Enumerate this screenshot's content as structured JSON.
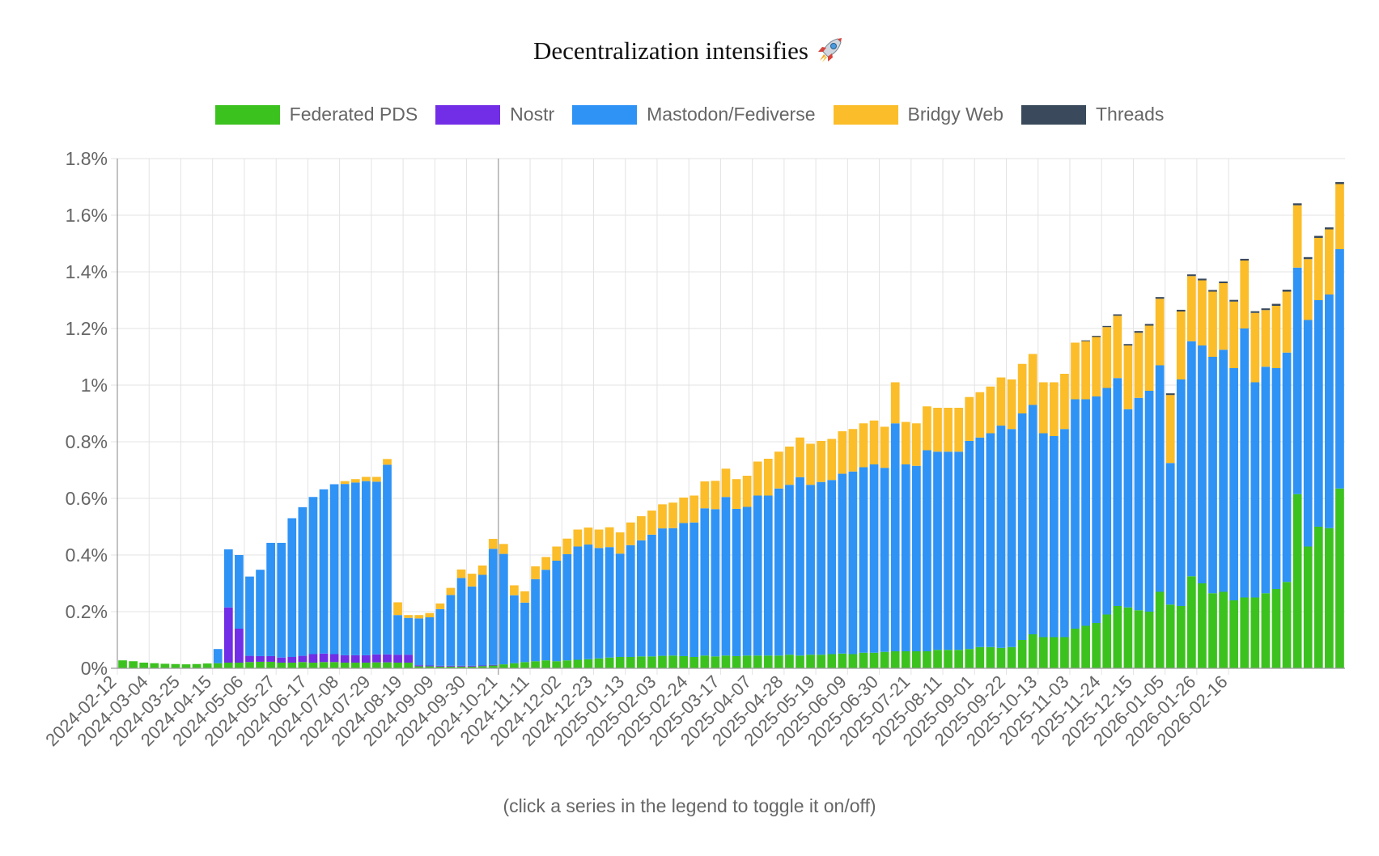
{
  "chart_data": {
    "type": "bar",
    "stacked": true,
    "title": "Decentralization intensifies",
    "title_icon": "rocket-icon",
    "footnote": "(click a series in the legend to toggle it on/off)",
    "legend_position": "top-center",
    "grid": true,
    "ylim": [
      0,
      1.8
    ],
    "y_ticks": [
      {
        "value": 0,
        "label": "0%"
      },
      {
        "value": 0.2,
        "label": "0.2%"
      },
      {
        "value": 0.4,
        "label": "0.4%"
      },
      {
        "value": 0.6,
        "label": "0.6%"
      },
      {
        "value": 0.8,
        "label": "0.8%"
      },
      {
        "value": 1.0,
        "label": "1%"
      },
      {
        "value": 1.2,
        "label": "1.2%"
      },
      {
        "value": 1.4,
        "label": "1.4%"
      },
      {
        "value": 1.6,
        "label": "1.6%"
      },
      {
        "value": 1.8,
        "label": "1.8%"
      }
    ],
    "x_start": "2024-02-12",
    "x_step_days": 7,
    "x_tick_every": 3,
    "x_tick_labels": [
      "2024-02-12",
      "2024-03-04",
      "2024-03-25",
      "2024-04-15",
      "2024-05-06",
      "2024-05-27",
      "2024-06-17",
      "2024-07-08",
      "2024-07-29",
      "2024-08-19",
      "2024-09-09",
      "2024-09-30",
      "2024-10-21",
      "2024-11-11",
      "2024-12-02",
      "2024-12-23",
      "2025-01-13",
      "2025-02-03",
      "2025-02-24",
      "2025-03-17",
      "2025-04-07",
      "2025-04-28",
      "2025-05-19",
      "2025-06-09",
      "2025-06-30",
      "2025-07-21",
      "2025-08-11",
      "2025-09-01",
      "2025-09-22",
      "2025-10-13",
      "2025-11-03",
      "2025-11-24",
      "2025-12-15",
      "2026-01-05",
      "2026-01-26",
      "2026-02-16"
    ],
    "series": [
      {
        "name": "Federated PDS",
        "color": "#3cc21f",
        "values": [
          0.028,
          0.025,
          0.02,
          0.018,
          0.016,
          0.015,
          0.014,
          0.015,
          0.017,
          0.018,
          0.02,
          0.02,
          0.022,
          0.023,
          0.023,
          0.02,
          0.02,
          0.022,
          0.02,
          0.022,
          0.022,
          0.02,
          0.02,
          0.02,
          0.021,
          0.021,
          0.02,
          0.02,
          0.007,
          0.007,
          0.006,
          0.006,
          0.006,
          0.006,
          0.008,
          0.01,
          0.014,
          0.018,
          0.022,
          0.025,
          0.028,
          0.025,
          0.028,
          0.03,
          0.032,
          0.035,
          0.038,
          0.04,
          0.04,
          0.042,
          0.042,
          0.044,
          0.045,
          0.043,
          0.04,
          0.045,
          0.042,
          0.045,
          0.043,
          0.045,
          0.045,
          0.045,
          0.045,
          0.048,
          0.045,
          0.048,
          0.048,
          0.05,
          0.052,
          0.05,
          0.055,
          0.055,
          0.058,
          0.06,
          0.06,
          0.06,
          0.06,
          0.065,
          0.065,
          0.065,
          0.068,
          0.075,
          0.075,
          0.072,
          0.075,
          0.1,
          0.12,
          0.11,
          0.11,
          0.11,
          0.14,
          0.15,
          0.16,
          0.19,
          0.22,
          0.215,
          0.205,
          0.2,
          0.27,
          0.225,
          0.22,
          0.325,
          0.3,
          0.265,
          0.27,
          0.24,
          0.25,
          0.25,
          0.265,
          0.28,
          0.305,
          0.615,
          0.43,
          0.5,
          0.495,
          0.635
        ]
      },
      {
        "name": "Nostr",
        "color": "#722ee6",
        "values": [
          0,
          0,
          0,
          0,
          0,
          0,
          0,
          0,
          0,
          0,
          0.195,
          0.12,
          0.022,
          0.02,
          0.02,
          0.018,
          0.02,
          0.022,
          0.03,
          0.03,
          0.028,
          0.026,
          0.026,
          0.026,
          0.028,
          0.028,
          0.028,
          0.028,
          0.004,
          0.003,
          0.003,
          0.003,
          0.003,
          0.003,
          0.002,
          0.002,
          0,
          0,
          0,
          0,
          0,
          0,
          0,
          0,
          0,
          0,
          0,
          0,
          0,
          0,
          0,
          0,
          0,
          0,
          0,
          0,
          0,
          0,
          0,
          0,
          0,
          0,
          0,
          0,
          0,
          0,
          0,
          0,
          0,
          0,
          0,
          0,
          0,
          0,
          0,
          0,
          0,
          0,
          0,
          0,
          0,
          0,
          0,
          0,
          0,
          0,
          0,
          0,
          0,
          0,
          0,
          0,
          0,
          0,
          0,
          0,
          0,
          0,
          0,
          0,
          0,
          0,
          0,
          0,
          0,
          0,
          0,
          0,
          0,
          0,
          0,
          0,
          0,
          0,
          0,
          0
        ]
      },
      {
        "name": "Mastodon/Fediverse",
        "color": "#2f93f5",
        "values": [
          0,
          0,
          0,
          0,
          0,
          0,
          0,
          0,
          0,
          0.05,
          0.205,
          0.26,
          0.28,
          0.305,
          0.4,
          0.405,
          0.49,
          0.525,
          0.555,
          0.58,
          0.6,
          0.605,
          0.61,
          0.615,
          0.61,
          0.67,
          0.14,
          0.13,
          0.165,
          0.17,
          0.2,
          0.25,
          0.31,
          0.28,
          0.32,
          0.41,
          0.39,
          0.24,
          0.21,
          0.29,
          0.32,
          0.355,
          0.375,
          0.4,
          0.405,
          0.39,
          0.39,
          0.365,
          0.395,
          0.41,
          0.43,
          0.45,
          0.45,
          0.47,
          0.475,
          0.52,
          0.52,
          0.56,
          0.52,
          0.525,
          0.565,
          0.565,
          0.59,
          0.6,
          0.63,
          0.6,
          0.61,
          0.615,
          0.635,
          0.645,
          0.655,
          0.665,
          0.65,
          0.805,
          0.66,
          0.655,
          0.71,
          0.7,
          0.7,
          0.7,
          0.735,
          0.74,
          0.755,
          0.785,
          0.77,
          0.8,
          0.81,
          0.72,
          0.71,
          0.735,
          0.81,
          0.8,
          0.8,
          0.8,
          0.805,
          0.7,
          0.75,
          0.78,
          0.8,
          0.5,
          0.8,
          0.83,
          0.84,
          0.835,
          0.855,
          0.82,
          0.95,
          0.76,
          0.8,
          0.78,
          0.81,
          0.8,
          0.8,
          0.8,
          0.825,
          0.845
        ]
      },
      {
        "name": "Bridgy Web",
        "color": "#fbbd29",
        "values": [
          0,
          0,
          0,
          0,
          0,
          0,
          0,
          0,
          0,
          0,
          0,
          0,
          0,
          0,
          0,
          0,
          0,
          0,
          0,
          0,
          0,
          0.01,
          0.012,
          0.015,
          0.017,
          0.02,
          0.045,
          0.01,
          0.012,
          0.015,
          0.02,
          0.025,
          0.03,
          0.045,
          0.033,
          0.035,
          0.035,
          0.035,
          0.04,
          0.045,
          0.045,
          0.05,
          0.055,
          0.06,
          0.06,
          0.065,
          0.07,
          0.075,
          0.08,
          0.085,
          0.085,
          0.085,
          0.09,
          0.09,
          0.095,
          0.095,
          0.1,
          0.1,
          0.105,
          0.11,
          0.12,
          0.13,
          0.13,
          0.135,
          0.14,
          0.145,
          0.145,
          0.145,
          0.15,
          0.15,
          0.155,
          0.155,
          0.145,
          0.145,
          0.15,
          0.15,
          0.155,
          0.155,
          0.155,
          0.155,
          0.155,
          0.16,
          0.165,
          0.17,
          0.175,
          0.175,
          0.18,
          0.18,
          0.19,
          0.195,
          0.2,
          0.205,
          0.21,
          0.215,
          0.22,
          0.225,
          0.23,
          0.23,
          0.235,
          0.24,
          0.24,
          0.23,
          0.23,
          0.23,
          0.235,
          0.235,
          0.24,
          0.245,
          0.2,
          0.22,
          0.215,
          0.22,
          0.215,
          0.22,
          0.23,
          0.23
        ]
      },
      {
        "name": "Threads",
        "color": "#3a4a5c",
        "values": [
          0,
          0,
          0,
          0,
          0,
          0,
          0,
          0,
          0,
          0,
          0,
          0,
          0,
          0,
          0,
          0,
          0,
          0,
          0,
          0,
          0,
          0,
          0,
          0,
          0,
          0,
          0,
          0,
          0,
          0,
          0,
          0,
          0,
          0,
          0,
          0,
          0,
          0,
          0,
          0,
          0,
          0,
          0,
          0,
          0,
          0,
          0,
          0,
          0,
          0,
          0,
          0,
          0,
          0,
          0,
          0,
          0,
          0,
          0,
          0,
          0,
          0,
          0,
          0,
          0,
          0,
          0,
          0,
          0,
          0,
          0,
          0,
          0,
          0,
          0,
          0,
          0,
          0,
          0,
          0,
          0,
          0,
          0,
          0,
          0,
          0,
          0,
          0,
          0,
          0,
          0,
          0.003,
          0.004,
          0.004,
          0.005,
          0.005,
          0.006,
          0.006,
          0.006,
          0.006,
          0.006,
          0.006,
          0.006,
          0.006,
          0.006,
          0.006,
          0.006,
          0.006,
          0.006,
          0.007,
          0.007,
          0.007,
          0.007,
          0.007,
          0.007,
          0.007
        ]
      }
    ]
  }
}
